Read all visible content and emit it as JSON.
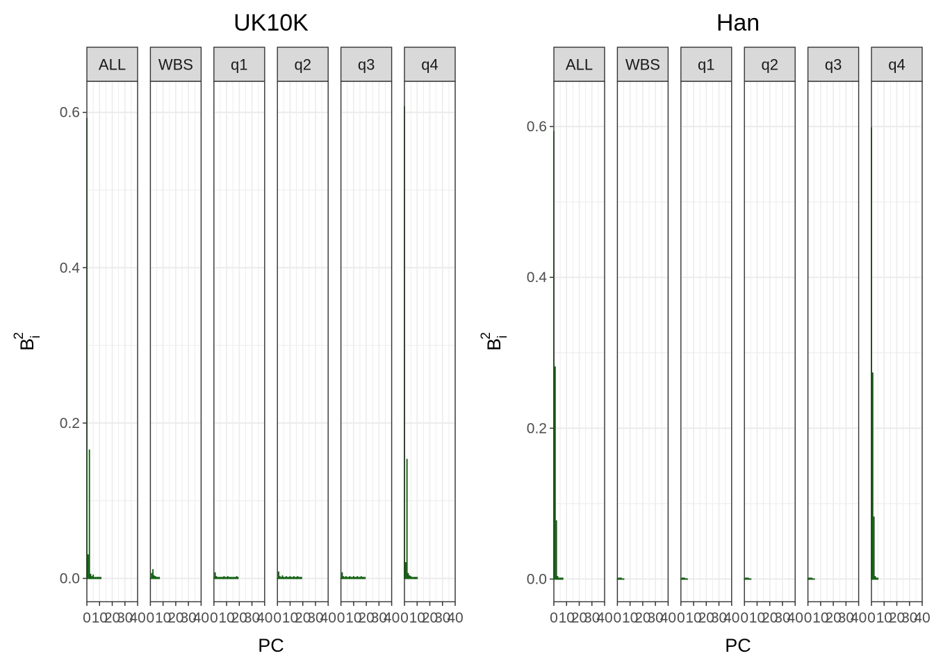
{
  "chart_data": [
    {
      "type": "bar",
      "title": "UK10K",
      "xlabel": "PC",
      "ylabel": "B",
      "ylabel_sup": "2",
      "ylabel_sub": "i",
      "xlim": [
        0,
        40
      ],
      "ylim": [
        -0.03,
        0.64
      ],
      "yticks": [
        0.0,
        0.2,
        0.4,
        0.6
      ],
      "ytick_labels": [
        "0.0",
        "0.2",
        "0.4",
        "0.6"
      ],
      "xticks": [
        0,
        10,
        20,
        30,
        40
      ],
      "xtick_labels": [
        "0",
        "10",
        "20",
        "30",
        "40"
      ],
      "grid": true,
      "bar_color": "#0a5c0a",
      "panels": [
        {
          "name": "ALL",
          "values": [
            0.592,
            0.03,
            0.165,
            0.005,
            0.002,
            0.004,
            0.001,
            0.001,
            0.001,
            0.001,
            0.001,
            0.001
          ]
        },
        {
          "name": "WBS",
          "values": [
            0.0,
            0.006,
            0.011,
            0.003,
            0.002,
            0.001,
            0.001,
            0.001
          ]
        },
        {
          "name": "q1",
          "values": [
            0.0,
            0.007,
            0.002,
            0.001,
            0.001,
            0.001,
            0.001,
            0.001,
            0.002,
            0.001,
            0.001,
            0.002,
            0.001,
            0.001,
            0.001,
            0.001,
            0.001,
            0.001,
            0.002,
            0.001
          ]
        },
        {
          "name": "q2",
          "values": [
            0.0,
            0.008,
            0.002,
            0.001,
            0.003,
            0.001,
            0.001,
            0.002,
            0.001,
            0.001,
            0.002,
            0.001,
            0.001,
            0.002,
            0.001,
            0.001,
            0.002,
            0.001,
            0.001,
            0.001
          ]
        },
        {
          "name": "q3",
          "values": [
            0.0,
            0.007,
            0.002,
            0.001,
            0.002,
            0.001,
            0.001,
            0.002,
            0.001,
            0.001,
            0.002,
            0.001,
            0.001,
            0.002,
            0.001,
            0.001,
            0.002,
            0.001,
            0.001,
            0.001
          ]
        },
        {
          "name": "q4",
          "values": [
            0.607,
            0.02,
            0.153,
            0.006,
            0.003,
            0.002,
            0.001,
            0.001,
            0.001,
            0.001,
            0.001
          ]
        }
      ]
    },
    {
      "type": "bar",
      "title": "Han",
      "xlabel": "PC",
      "ylabel": "B",
      "ylabel_sup": "2",
      "ylabel_sub": "i",
      "xlim": [
        0,
        40
      ],
      "ylim": [
        -0.03,
        0.66
      ],
      "yticks": [
        0.0,
        0.2,
        0.4,
        0.6
      ],
      "ytick_labels": [
        "0.0",
        "0.2",
        "0.4",
        "0.6"
      ],
      "xticks": [
        0,
        10,
        20,
        30,
        40
      ],
      "xtick_labels": [
        "0",
        "10",
        "20",
        "30",
        "40"
      ],
      "grid": true,
      "bar_color": "#0a5c0a",
      "panels": [
        {
          "name": "ALL",
          "values": [
            0.593,
            0.281,
            0.077,
            0.003,
            0.001,
            0.001,
            0.001,
            0.001
          ]
        },
        {
          "name": "WBS",
          "values": [
            0.0,
            0.001,
            0.001,
            0.001,
            0.0,
            0.0
          ]
        },
        {
          "name": "q1",
          "values": [
            0.0,
            0.001,
            0.001,
            0.001,
            0.0,
            0.0
          ]
        },
        {
          "name": "q2",
          "values": [
            0.0,
            0.001,
            0.001,
            0.001,
            0.0,
            0.0
          ]
        },
        {
          "name": "q3",
          "values": [
            0.0,
            0.001,
            0.001,
            0.001,
            0.0,
            0.0
          ]
        },
        {
          "name": "q4",
          "values": [
            0.598,
            0.273,
            0.082,
            0.003,
            0.001,
            0.001
          ]
        }
      ]
    }
  ]
}
